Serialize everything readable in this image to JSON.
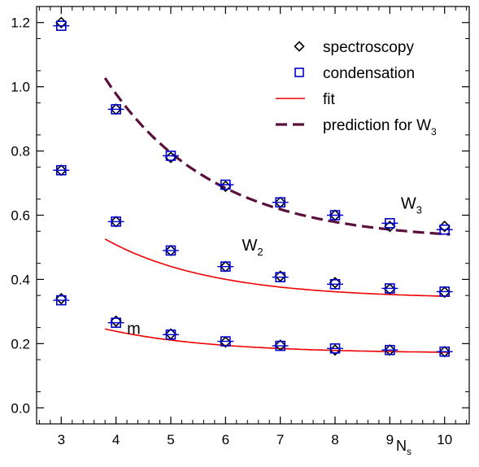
{
  "chart_data": {
    "type": "scatter",
    "xlabel": "N",
    "xlabel_sub": "s",
    "ylabel": "",
    "xlim": [
      2.55,
      10.45
    ],
    "ylim": [
      -0.05,
      1.25
    ],
    "xticks": [
      3,
      4,
      5,
      6,
      7,
      8,
      9,
      10
    ],
    "yticks": [
      0.0,
      0.2,
      0.4,
      0.6,
      0.8,
      1.0,
      1.2
    ],
    "ytick_labels": [
      "0.0",
      "0.2",
      "0.4",
      "0.6",
      "0.8",
      "1.0",
      "1.2"
    ],
    "legend": {
      "position": "top-right",
      "entries": [
        {
          "label": "spectroscopy",
          "marker": "diamond",
          "color": "#000000"
        },
        {
          "label": "condensation",
          "marker": "square",
          "color": "#0000cc"
        },
        {
          "label": "fit",
          "marker": "line",
          "color": "#ee0000"
        },
        {
          "label": "prediction for W",
          "label_sub": "3",
          "marker": "dashed",
          "color": "#5a0f3c"
        }
      ]
    },
    "annotations": [
      {
        "text": "W",
        "sub": "3",
        "x": 9.2,
        "y": 0.62
      },
      {
        "text": "W",
        "sub": "2",
        "x": 6.3,
        "y": 0.49
      },
      {
        "text": "m",
        "x": 4.2,
        "y": 0.23
      }
    ],
    "series": [
      {
        "name": "spectroscopy",
        "marker": "diamond",
        "points": [
          [
            3,
            1.2
          ],
          [
            3,
            0.74
          ],
          [
            3,
            0.34
          ],
          [
            4,
            0.93
          ],
          [
            4,
            0.58
          ],
          [
            4,
            0.27
          ],
          [
            5,
            0.78
          ],
          [
            5,
            0.49
          ],
          [
            5,
            0.23
          ],
          [
            6,
            0.69
          ],
          [
            6,
            0.44
          ],
          [
            6,
            0.205
          ],
          [
            7,
            0.64
          ],
          [
            7,
            0.41
          ],
          [
            7,
            0.195
          ],
          [
            8,
            0.6
          ],
          [
            8,
            0.39
          ],
          [
            8,
            0.18
          ],
          [
            9,
            0.565
          ],
          [
            9,
            0.37
          ],
          [
            9,
            0.18
          ],
          [
            10,
            0.565
          ],
          [
            10,
            0.36
          ],
          [
            10,
            0.175
          ]
        ]
      },
      {
        "name": "condensation",
        "marker": "square",
        "points": [
          [
            3,
            1.19
          ],
          [
            3,
            0.74
          ],
          [
            3,
            0.335
          ],
          [
            4,
            0.93
          ],
          [
            4,
            0.58
          ],
          [
            4,
            0.265
          ],
          [
            5,
            0.785
          ],
          [
            5,
            0.49
          ],
          [
            5,
            0.228
          ],
          [
            6,
            0.695
          ],
          [
            6,
            0.44
          ],
          [
            6,
            0.207
          ],
          [
            7,
            0.64
          ],
          [
            7,
            0.407
          ],
          [
            7,
            0.193
          ],
          [
            8,
            0.6
          ],
          [
            8,
            0.385
          ],
          [
            8,
            0.185
          ],
          [
            9,
            0.575
          ],
          [
            9,
            0.372
          ],
          [
            9,
            0.18
          ],
          [
            10,
            0.555
          ],
          [
            10,
            0.362
          ],
          [
            10,
            0.175
          ]
        ]
      },
      {
        "name": "fit W2",
        "style": "solid",
        "color": "#ee0000",
        "x_range": [
          3.8,
          10.1
        ],
        "asymptote": 0.34,
        "amplitude": 1.3,
        "decay": 0.512
      },
      {
        "name": "fit m",
        "style": "solid",
        "color": "#ee0000",
        "x_range": [
          3.8,
          10.1
        ],
        "asymptote": 0.17,
        "amplitude": 0.53,
        "decay": 0.512
      },
      {
        "name": "prediction W3",
        "style": "dashed",
        "color": "#5a0f3c",
        "x_range": [
          3.8,
          10.1
        ],
        "asymptote": 0.52,
        "amplitude": 3.55,
        "decay": 0.512
      }
    ]
  }
}
